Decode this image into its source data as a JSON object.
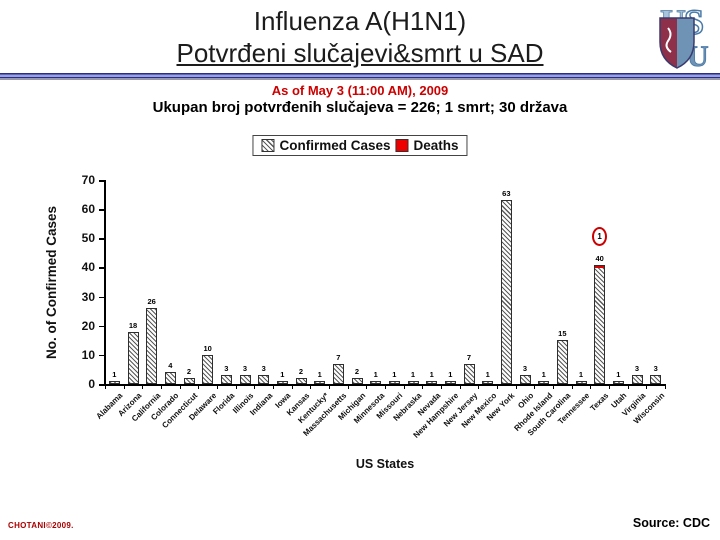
{
  "slide": {
    "title_line1": "Influenza A(H1N1)",
    "title_line2": "Potvrđeni slučajevi&smrt u SAD",
    "date_line": "As of May 3 (11:00 AM), 2009",
    "summary_line": "Ukupan broj potvrđenih slučajeva = 226; 1 smrt; 30 država",
    "footer_left": "CHOTANI©2009.",
    "footer_right": "Source: CDC",
    "logo_letters": [
      "U",
      "S",
      "U"
    ]
  },
  "legend": {
    "confirmed_label": "Confirmed Cases",
    "deaths_label": "Deaths"
  },
  "colors": {
    "date_red": "#cc0000",
    "deaths_red": "#ee0000",
    "divider_navy": "#2c2c86",
    "divider_periwinkle": "#97a2e2",
    "logo_maroon": "#8e3049",
    "logo_blue": "#6e93b4",
    "logo_light_blue": "#a8c4dc"
  },
  "chart_data": {
    "type": "bar",
    "title": "",
    "xlabel": "US States",
    "ylabel": "No. of Confirmed Cases",
    "ylim": [
      0,
      70
    ],
    "ytick_step": 10,
    "grid": false,
    "legend_position": "top-center",
    "bar_style": "diagonal-hatch",
    "categories": [
      "Alabama",
      "Arizona",
      "California",
      "Colorado",
      "Connecticut",
      "Delaware",
      "Florida",
      "Illinois",
      "Indiana",
      "Iowa",
      "Kansas",
      "Kentucky*",
      "Massachusetts",
      "Michigan",
      "Minnesota",
      "Missouri",
      "Nebraska",
      "Nevada",
      "New Hampshire",
      "New Jersey",
      "New Mexico",
      "New York",
      "Ohio",
      "Rhode Island",
      "South Carolina",
      "Tennessee",
      "Texas",
      "Utah",
      "Virginia",
      "Wisconsin"
    ],
    "series": [
      {
        "name": "Confirmed Cases",
        "values": [
          1,
          18,
          26,
          4,
          2,
          10,
          3,
          3,
          3,
          1,
          2,
          1,
          7,
          2,
          1,
          1,
          1,
          1,
          1,
          7,
          1,
          63,
          3,
          1,
          15,
          1,
          40,
          1,
          3,
          3
        ]
      },
      {
        "name": "Deaths",
        "values": [
          0,
          0,
          0,
          0,
          0,
          0,
          0,
          0,
          0,
          0,
          0,
          0,
          0,
          0,
          0,
          0,
          0,
          0,
          0,
          0,
          0,
          0,
          0,
          0,
          0,
          0,
          1,
          0,
          0,
          0
        ]
      }
    ],
    "annotations": [
      {
        "category": "Texas",
        "text": "1",
        "style": "red-circle",
        "meaning": "1 death in Texas"
      }
    ]
  }
}
